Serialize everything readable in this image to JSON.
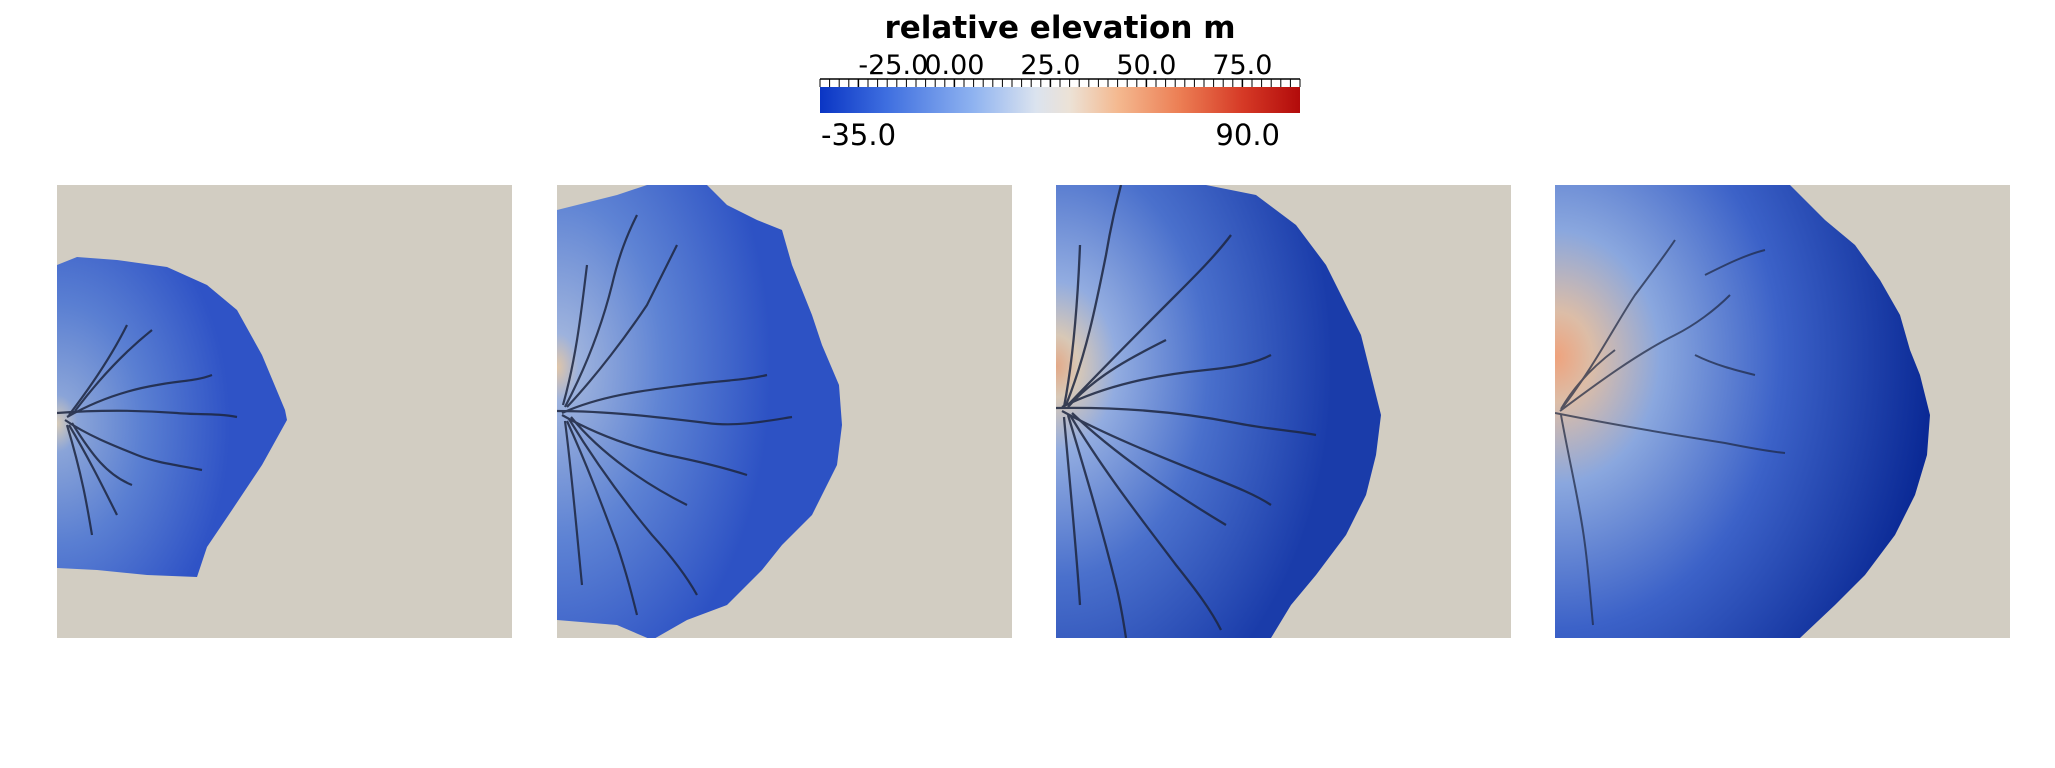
{
  "legend": {
    "title": "relative elevation m",
    "tick_labels": [
      "-25.0",
      "0.00",
      "25.0",
      "50.0",
      "75.0"
    ],
    "range_min": "-35.0",
    "range_max": "90.0",
    "colors": {
      "low": "#0a35c4",
      "mid": "#dcdfe5",
      "high": "#b20b0b",
      "background_terrain": "#d2cdc2"
    }
  },
  "panels": [
    {
      "label": "panel-1"
    },
    {
      "label": "panel-2"
    },
    {
      "label": "panel-3"
    },
    {
      "label": "panel-4"
    }
  ]
}
